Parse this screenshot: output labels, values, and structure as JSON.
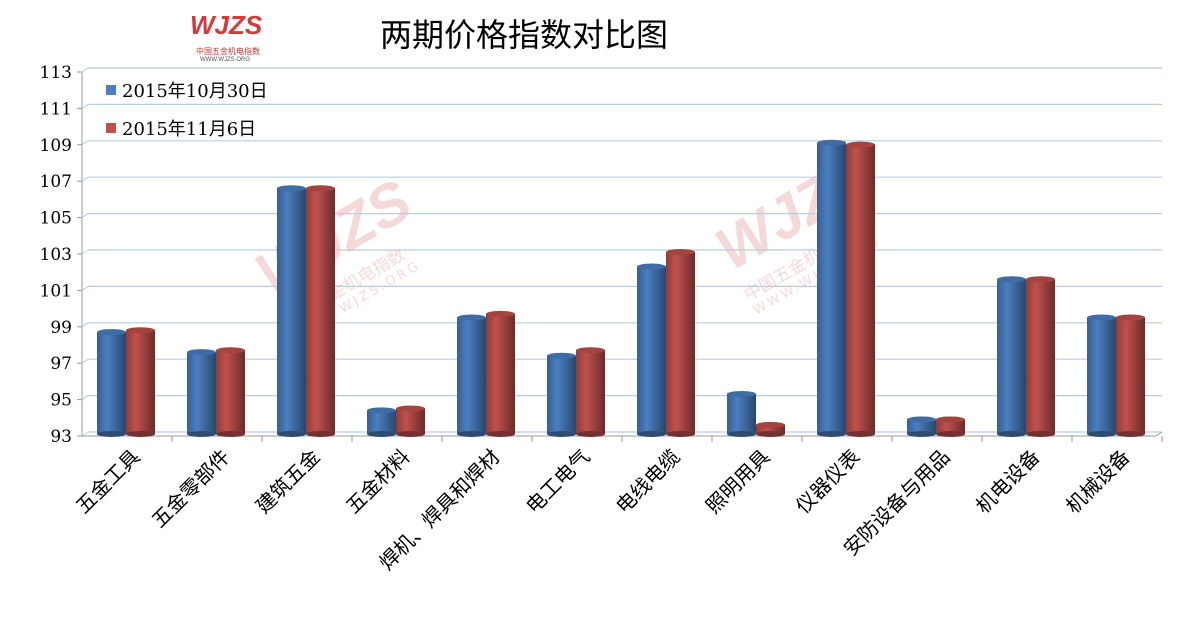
{
  "title": "两期价格指数对比图",
  "logo": {
    "mark": "WJZS",
    "name": "中国五金机电指数",
    "url": "WWW.WJZS.ORG"
  },
  "chart_data": {
    "type": "bar",
    "title": "两期价格指数对比图",
    "categories": [
      "五金工具",
      "五金零部件",
      "建筑五金",
      "五金材料",
      "焊机、焊具和焊材",
      "电工电气",
      "电线电缆",
      "照明用具",
      "仪器仪表",
      "安防设备与用品",
      "机电设备",
      "机械设备"
    ],
    "series": [
      {
        "name": "2015年10月30日",
        "color": "#4a7fc1",
        "values": [
          98.6,
          97.5,
          106.5,
          94.3,
          99.4,
          97.3,
          102.2,
          95.2,
          109.0,
          93.8,
          101.5,
          99.4
        ]
      },
      {
        "name": "2015年11月6日",
        "color": "#c0504d",
        "values": [
          98.7,
          97.6,
          106.5,
          94.4,
          99.6,
          97.6,
          103.0,
          93.5,
          108.9,
          93.8,
          101.5,
          99.4
        ]
      }
    ],
    "ylim": [
      93,
      113
    ],
    "yticks": [
      93,
      95,
      97,
      99,
      101,
      103,
      105,
      107,
      109,
      111,
      113
    ],
    "grid": true,
    "legend": "top-left",
    "xlabel": "",
    "ylabel": ""
  }
}
